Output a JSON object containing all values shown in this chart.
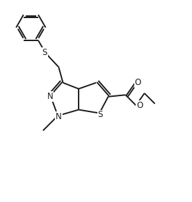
{
  "background_color": "#ffffff",
  "line_color": "#1a1a1a",
  "lw": 1.4,
  "dg": 0.12,
  "fs": 8.5,
  "fig_width": 2.76,
  "fig_height": 2.9,
  "xlim": [
    0,
    11
  ],
  "ylim": [
    0,
    11
  ]
}
